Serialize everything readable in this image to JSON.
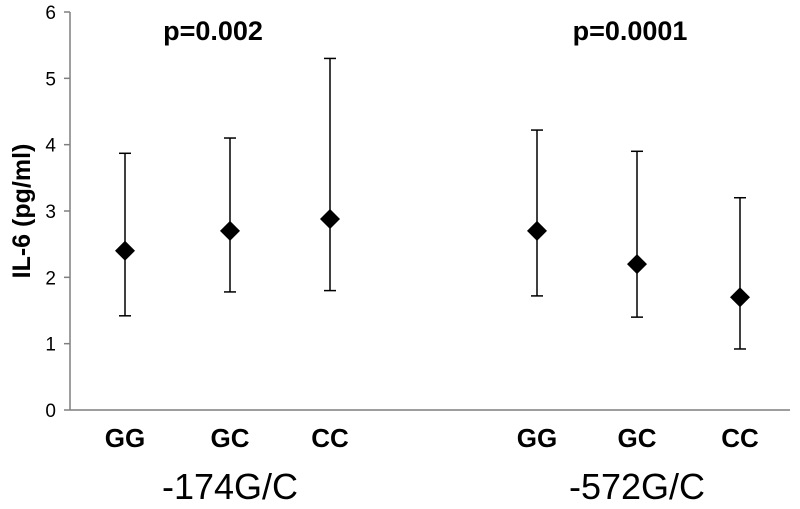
{
  "chart_data": {
    "type": "scatter",
    "ylabel": "IL-6 (pg/ml)",
    "ylim": [
      0,
      6
    ],
    "yticks": [
      "0",
      "1",
      "2",
      "3",
      "4",
      "5",
      "6"
    ],
    "groups": [
      {
        "label": "-174G/C",
        "p_value": "p=0.002",
        "categories": [
          "GG",
          "GC",
          "CC"
        ],
        "values": [
          2.4,
          2.7,
          2.88
        ],
        "err_low": [
          1.42,
          1.78,
          1.8
        ],
        "err_high": [
          3.87,
          4.1,
          5.3
        ]
      },
      {
        "label": "-572G/C",
        "p_value": "p=0.0001",
        "categories": [
          "GG",
          "GC",
          "CC"
        ],
        "values": [
          2.7,
          2.2,
          1.7
        ],
        "err_low": [
          1.72,
          1.4,
          0.92
        ],
        "err_high": [
          4.22,
          3.9,
          3.2
        ]
      }
    ],
    "grid": false,
    "marker": "diamond",
    "color": "#000000"
  }
}
